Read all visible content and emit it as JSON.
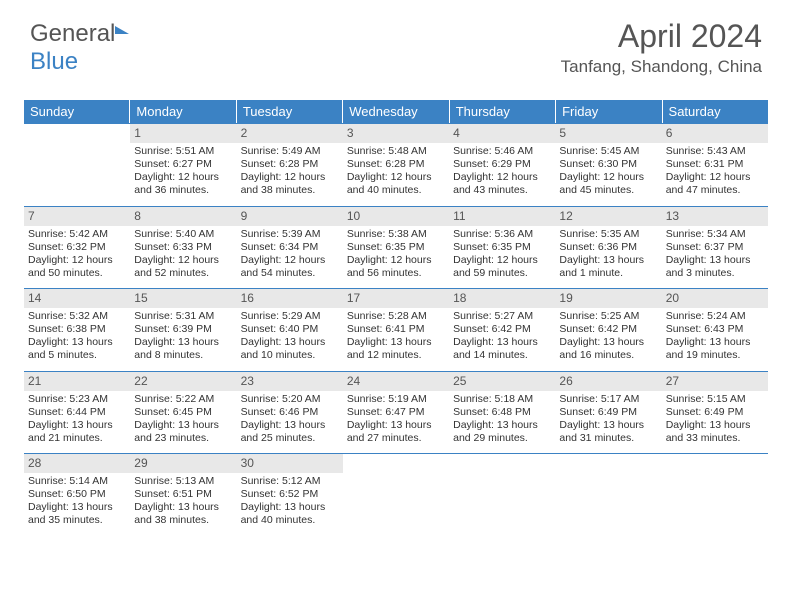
{
  "logo": {
    "part1": "General",
    "part2": "Blue"
  },
  "header": {
    "month": "April 2024",
    "location": "Tanfang, Shandong, China"
  },
  "colors": {
    "accent": "#3b82c4",
    "daynum_bg": "#e8e8e8",
    "text": "#333333"
  },
  "weekdays": [
    "Sunday",
    "Monday",
    "Tuesday",
    "Wednesday",
    "Thursday",
    "Friday",
    "Saturday"
  ],
  "weeks": [
    [
      null,
      {
        "n": "1",
        "sr": "Sunrise: 5:51 AM",
        "ss": "Sunset: 6:27 PM",
        "d1": "Daylight: 12 hours",
        "d2": "and 36 minutes."
      },
      {
        "n": "2",
        "sr": "Sunrise: 5:49 AM",
        "ss": "Sunset: 6:28 PM",
        "d1": "Daylight: 12 hours",
        "d2": "and 38 minutes."
      },
      {
        "n": "3",
        "sr": "Sunrise: 5:48 AM",
        "ss": "Sunset: 6:28 PM",
        "d1": "Daylight: 12 hours",
        "d2": "and 40 minutes."
      },
      {
        "n": "4",
        "sr": "Sunrise: 5:46 AM",
        "ss": "Sunset: 6:29 PM",
        "d1": "Daylight: 12 hours",
        "d2": "and 43 minutes."
      },
      {
        "n": "5",
        "sr": "Sunrise: 5:45 AM",
        "ss": "Sunset: 6:30 PM",
        "d1": "Daylight: 12 hours",
        "d2": "and 45 minutes."
      },
      {
        "n": "6",
        "sr": "Sunrise: 5:43 AM",
        "ss": "Sunset: 6:31 PM",
        "d1": "Daylight: 12 hours",
        "d2": "and 47 minutes."
      }
    ],
    [
      {
        "n": "7",
        "sr": "Sunrise: 5:42 AM",
        "ss": "Sunset: 6:32 PM",
        "d1": "Daylight: 12 hours",
        "d2": "and 50 minutes."
      },
      {
        "n": "8",
        "sr": "Sunrise: 5:40 AM",
        "ss": "Sunset: 6:33 PM",
        "d1": "Daylight: 12 hours",
        "d2": "and 52 minutes."
      },
      {
        "n": "9",
        "sr": "Sunrise: 5:39 AM",
        "ss": "Sunset: 6:34 PM",
        "d1": "Daylight: 12 hours",
        "d2": "and 54 minutes."
      },
      {
        "n": "10",
        "sr": "Sunrise: 5:38 AM",
        "ss": "Sunset: 6:35 PM",
        "d1": "Daylight: 12 hours",
        "d2": "and 56 minutes."
      },
      {
        "n": "11",
        "sr": "Sunrise: 5:36 AM",
        "ss": "Sunset: 6:35 PM",
        "d1": "Daylight: 12 hours",
        "d2": "and 59 minutes."
      },
      {
        "n": "12",
        "sr": "Sunrise: 5:35 AM",
        "ss": "Sunset: 6:36 PM",
        "d1": "Daylight: 13 hours",
        "d2": "and 1 minute."
      },
      {
        "n": "13",
        "sr": "Sunrise: 5:34 AM",
        "ss": "Sunset: 6:37 PM",
        "d1": "Daylight: 13 hours",
        "d2": "and 3 minutes."
      }
    ],
    [
      {
        "n": "14",
        "sr": "Sunrise: 5:32 AM",
        "ss": "Sunset: 6:38 PM",
        "d1": "Daylight: 13 hours",
        "d2": "and 5 minutes."
      },
      {
        "n": "15",
        "sr": "Sunrise: 5:31 AM",
        "ss": "Sunset: 6:39 PM",
        "d1": "Daylight: 13 hours",
        "d2": "and 8 minutes."
      },
      {
        "n": "16",
        "sr": "Sunrise: 5:29 AM",
        "ss": "Sunset: 6:40 PM",
        "d1": "Daylight: 13 hours",
        "d2": "and 10 minutes."
      },
      {
        "n": "17",
        "sr": "Sunrise: 5:28 AM",
        "ss": "Sunset: 6:41 PM",
        "d1": "Daylight: 13 hours",
        "d2": "and 12 minutes."
      },
      {
        "n": "18",
        "sr": "Sunrise: 5:27 AM",
        "ss": "Sunset: 6:42 PM",
        "d1": "Daylight: 13 hours",
        "d2": "and 14 minutes."
      },
      {
        "n": "19",
        "sr": "Sunrise: 5:25 AM",
        "ss": "Sunset: 6:42 PM",
        "d1": "Daylight: 13 hours",
        "d2": "and 16 minutes."
      },
      {
        "n": "20",
        "sr": "Sunrise: 5:24 AM",
        "ss": "Sunset: 6:43 PM",
        "d1": "Daylight: 13 hours",
        "d2": "and 19 minutes."
      }
    ],
    [
      {
        "n": "21",
        "sr": "Sunrise: 5:23 AM",
        "ss": "Sunset: 6:44 PM",
        "d1": "Daylight: 13 hours",
        "d2": "and 21 minutes."
      },
      {
        "n": "22",
        "sr": "Sunrise: 5:22 AM",
        "ss": "Sunset: 6:45 PM",
        "d1": "Daylight: 13 hours",
        "d2": "and 23 minutes."
      },
      {
        "n": "23",
        "sr": "Sunrise: 5:20 AM",
        "ss": "Sunset: 6:46 PM",
        "d1": "Daylight: 13 hours",
        "d2": "and 25 minutes."
      },
      {
        "n": "24",
        "sr": "Sunrise: 5:19 AM",
        "ss": "Sunset: 6:47 PM",
        "d1": "Daylight: 13 hours",
        "d2": "and 27 minutes."
      },
      {
        "n": "25",
        "sr": "Sunrise: 5:18 AM",
        "ss": "Sunset: 6:48 PM",
        "d1": "Daylight: 13 hours",
        "d2": "and 29 minutes."
      },
      {
        "n": "26",
        "sr": "Sunrise: 5:17 AM",
        "ss": "Sunset: 6:49 PM",
        "d1": "Daylight: 13 hours",
        "d2": "and 31 minutes."
      },
      {
        "n": "27",
        "sr": "Sunrise: 5:15 AM",
        "ss": "Sunset: 6:49 PM",
        "d1": "Daylight: 13 hours",
        "d2": "and 33 minutes."
      }
    ],
    [
      {
        "n": "28",
        "sr": "Sunrise: 5:14 AM",
        "ss": "Sunset: 6:50 PM",
        "d1": "Daylight: 13 hours",
        "d2": "and 35 minutes."
      },
      {
        "n": "29",
        "sr": "Sunrise: 5:13 AM",
        "ss": "Sunset: 6:51 PM",
        "d1": "Daylight: 13 hours",
        "d2": "and 38 minutes."
      },
      {
        "n": "30",
        "sr": "Sunrise: 5:12 AM",
        "ss": "Sunset: 6:52 PM",
        "d1": "Daylight: 13 hours",
        "d2": "and 40 minutes."
      },
      null,
      null,
      null,
      null
    ]
  ]
}
